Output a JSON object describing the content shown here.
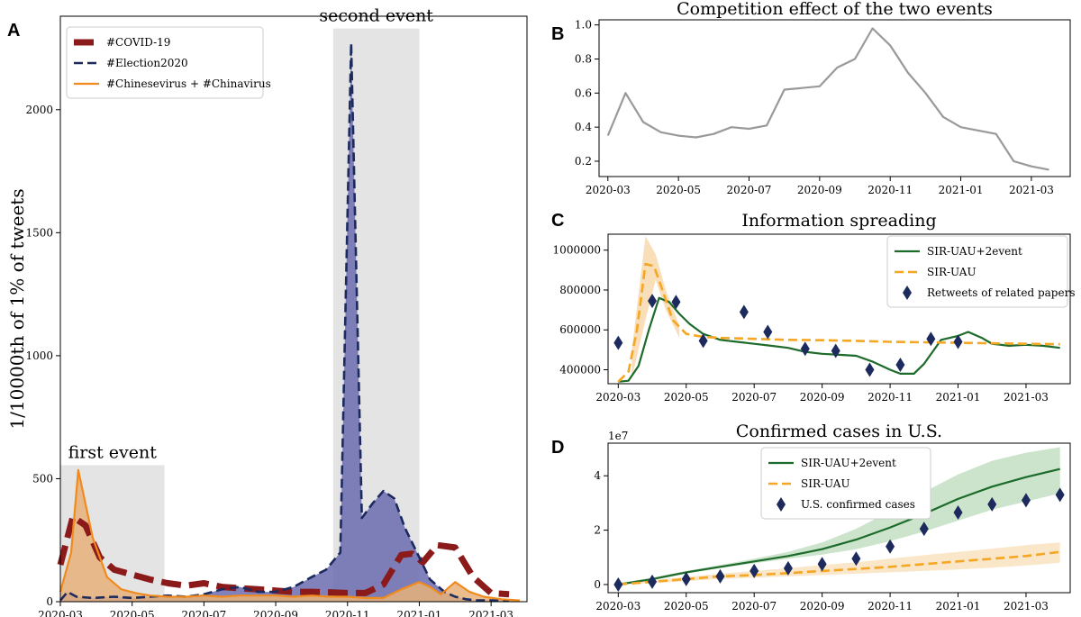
{
  "chart_data": [
    {
      "id": "A",
      "panel_letter": "A",
      "type": "area",
      "title": "",
      "xlabel": "",
      "ylabel": "1/10000th of 1% of tweets",
      "xlim": [
        0,
        13.0
      ],
      "ylim": [
        0,
        2380
      ],
      "yticks": [
        0,
        500,
        1000,
        1500,
        2000
      ],
      "ytick_labels": [
        "0",
        "500",
        "1000",
        "1500",
        "2000"
      ],
      "xticks": [
        0,
        2,
        4,
        6,
        8,
        10,
        12
      ],
      "xtick_labels": [
        "2020-03",
        "2020-05",
        "2020-07",
        "2020-09",
        "2020-11",
        "2021-01",
        "2021-03"
      ],
      "grid": false,
      "legend_position": "top-left",
      "annotations": [
        {
          "label": "first event",
          "x_start": 0.0,
          "x_end": 2.9,
          "y_top": 555
        },
        {
          "label": "second event",
          "x_start": 7.6,
          "x_end": 10.0,
          "y_top": 2330
        }
      ],
      "series": [
        {
          "name": "#COVID-19",
          "color": "#8b1a1a",
          "style": "dashed-thick",
          "fill": false,
          "x": [
            0,
            0.35,
            0.7,
            1.1,
            1.5,
            2.0,
            2.5,
            3.0,
            3.5,
            4.0,
            4.5,
            5.0,
            5.5,
            6.0,
            6.5,
            7.0,
            7.5,
            8.0,
            8.5,
            9.0,
            9.5,
            9.8,
            10.1,
            10.5,
            11.0,
            11.5,
            12.0,
            12.5
          ],
          "values": [
            150,
            345,
            310,
            180,
            130,
            110,
            90,
            75,
            65,
            75,
            60,
            55,
            50,
            45,
            40,
            40,
            38,
            35,
            35,
            70,
            190,
            195,
            160,
            230,
            220,
            100,
            35,
            30
          ]
        },
        {
          "name": "#Election2020",
          "color": "#1c2a5e",
          "fill_color": "#6b6bb0",
          "style": "dashed",
          "fill": true,
          "x": [
            0,
            0.2,
            0.45,
            0.9,
            1.5,
            2.0,
            2.5,
            3.0,
            3.5,
            4.0,
            4.5,
            5.0,
            5.5,
            6.0,
            6.5,
            7.0,
            7.4,
            7.8,
            8.1,
            8.4,
            8.7,
            9.0,
            9.3,
            9.6,
            10.0,
            10.3,
            10.7,
            11.0,
            11.3,
            11.6,
            12.0,
            12.5
          ],
          "values": [
            5,
            40,
            20,
            15,
            20,
            15,
            20,
            25,
            20,
            30,
            50,
            60,
            40,
            40,
            60,
            100,
            130,
            200,
            2270,
            340,
            400,
            450,
            420,
            300,
            180,
            90,
            40,
            20,
            10,
            5,
            5,
            5
          ]
        },
        {
          "name": "#Chinesevirus + #Chinavirus",
          "color": "#f08a1c",
          "fill_color": "#e7b27a",
          "style": "solid",
          "fill": true,
          "x": [
            0,
            0.3,
            0.5,
            0.9,
            1.3,
            1.7,
            2.1,
            2.5,
            3.0,
            3.5,
            4.0,
            4.5,
            5.0,
            5.5,
            6.0,
            6.5,
            7.0,
            7.5,
            8.0,
            8.5,
            9.0,
            9.5,
            10.0,
            10.3,
            10.6,
            11.0,
            11.4,
            11.8,
            12.3,
            12.8
          ],
          "values": [
            40,
            200,
            535,
            260,
            100,
            50,
            35,
            25,
            20,
            20,
            25,
            20,
            25,
            25,
            25,
            20,
            25,
            20,
            20,
            15,
            15,
            50,
            80,
            60,
            30,
            80,
            40,
            20,
            10,
            5
          ]
        }
      ]
    },
    {
      "id": "B",
      "panel_letter": "B",
      "type": "line",
      "title": "Competition effect of the two events",
      "xlabel": "",
      "ylabel": "",
      "xlim": [
        -0.25,
        13.1
      ],
      "ylim": [
        0.11,
        1.03
      ],
      "yticks": [
        0.2,
        0.4,
        0.6,
        0.8,
        1.0
      ],
      "ytick_labels": [
        "0.2",
        "0.4",
        "0.6",
        "0.8",
        "1.0"
      ],
      "xticks": [
        0,
        2,
        4,
        6,
        8,
        10,
        12
      ],
      "xtick_labels": [
        "2020-03",
        "2020-05",
        "2020-07",
        "2020-09",
        "2020-11",
        "2021-01",
        "2021-03"
      ],
      "grid": false,
      "series": [
        {
          "name": "competition",
          "color": "#999999",
          "x": [
            0,
            0.5,
            1.0,
            1.5,
            2.0,
            2.5,
            3.0,
            3.5,
            4.0,
            4.5,
            5.0,
            5.5,
            6.0,
            6.5,
            7.0,
            7.5,
            8.0,
            8.5,
            9.0,
            9.5,
            10.0,
            10.5,
            11.0,
            11.5,
            12.0,
            12.5
          ],
          "values": [
            0.35,
            0.6,
            0.43,
            0.37,
            0.35,
            0.34,
            0.36,
            0.4,
            0.39,
            0.41,
            0.62,
            0.63,
            0.64,
            0.75,
            0.8,
            0.98,
            0.88,
            0.72,
            0.6,
            0.46,
            0.4,
            0.38,
            0.36,
            0.2,
            0.17,
            0.15
          ]
        }
      ]
    },
    {
      "id": "C",
      "panel_letter": "C",
      "type": "line",
      "title": "Information spreading",
      "xlabel": "",
      "ylabel": "",
      "xlim": [
        -0.3,
        13.3
      ],
      "ylim": [
        330000,
        1080000
      ],
      "yticks": [
        400000,
        600000,
        800000,
        1000000
      ],
      "ytick_labels": [
        "400000",
        "600000",
        "800000",
        "1000000"
      ],
      "xticks": [
        0,
        2,
        4,
        6,
        8,
        10,
        12
      ],
      "xtick_labels": [
        "2020-03",
        "2020-05",
        "2020-07",
        "2020-09",
        "2020-11",
        "2021-01",
        "2021-03"
      ],
      "grid": false,
      "legend_position": "top-right",
      "series": [
        {
          "name": "SIR-UAU+2event",
          "color": "#1d6b2a",
          "style": "solid",
          "x": [
            0,
            0.3,
            0.6,
            0.9,
            1.2,
            1.5,
            1.8,
            2.1,
            2.5,
            3.0,
            3.5,
            4.0,
            4.5,
            5.0,
            5.5,
            6.0,
            6.5,
            7.0,
            7.5,
            8.0,
            8.3,
            8.7,
            9.0,
            9.5,
            10.0,
            10.3,
            10.7,
            11.0,
            11.5,
            12.0,
            12.5,
            13.0
          ],
          "values": [
            340000,
            345000,
            420000,
            600000,
            760000,
            740000,
            680000,
            630000,
            580000,
            550000,
            540000,
            530000,
            520000,
            510000,
            490000,
            480000,
            475000,
            470000,
            440000,
            400000,
            380000,
            380000,
            430000,
            550000,
            570000,
            590000,
            560000,
            530000,
            520000,
            525000,
            520000,
            510000
          ]
        },
        {
          "name": "SIR-UAU",
          "color": "#f5a623",
          "style": "dashed",
          "x": [
            0,
            0.3,
            0.55,
            0.8,
            1.05,
            1.3,
            1.6,
            2.0,
            2.5,
            3.0,
            4.0,
            5.0,
            6.0,
            7.0,
            8.0,
            9.0,
            10.0,
            11.0,
            12.0,
            13.0
          ],
          "values": [
            340000,
            390000,
            600000,
            930000,
            920000,
            800000,
            650000,
            580000,
            565000,
            560000,
            555000,
            550000,
            548000,
            545000,
            540000,
            538000,
            535000,
            533000,
            530000,
            528000
          ]
        },
        {
          "name": "Retweets of related papers",
          "color": "#1c2a5e",
          "style": "diamond",
          "x": [
            0,
            1.0,
            1.7,
            2.5,
            3.7,
            4.4,
            5.5,
            6.4,
            7.4,
            8.3,
            9.2,
            10.0
          ],
          "values": [
            535000,
            745000,
            740000,
            545000,
            690000,
            590000,
            505000,
            495000,
            400000,
            425000,
            555000,
            540000
          ]
        }
      ],
      "band": {
        "name": "SIR-UAU band",
        "color": "#f5c98a",
        "x": [
          0.4,
          0.8,
          1.1,
          1.4,
          1.8
        ],
        "upper": [
          500000,
          1070000,
          980000,
          800000,
          620000
        ],
        "lower": [
          360000,
          650000,
          850000,
          700000,
          560000
        ]
      }
    },
    {
      "id": "D",
      "panel_letter": "D",
      "type": "line",
      "title": "Confirmed cases in U.S.",
      "xlabel": "",
      "ylabel": "",
      "y_offset_label": "1e7",
      "xlim": [
        -0.3,
        13.3
      ],
      "ylim": [
        -0.3,
        5.2
      ],
      "yticks": [
        0,
        2,
        4
      ],
      "ytick_labels": [
        "0",
        "2",
        "4"
      ],
      "xticks": [
        0,
        2,
        4,
        6,
        8,
        10,
        12
      ],
      "xtick_labels": [
        "2020-03",
        "2020-05",
        "2020-07",
        "2020-09",
        "2020-11",
        "2021-01",
        "2021-03"
      ],
      "grid": false,
      "legend_position": "top-center",
      "series": [
        {
          "name": "SIR-UAU+2event",
          "color": "#1d6b2a",
          "style": "solid",
          "x": [
            0,
            1,
            2,
            3,
            4,
            5,
            6,
            7,
            8,
            9,
            10,
            11,
            12,
            13
          ],
          "values": [
            0.0,
            0.2,
            0.45,
            0.65,
            0.85,
            1.05,
            1.3,
            1.65,
            2.1,
            2.6,
            3.15,
            3.6,
            3.95,
            4.25
          ]
        },
        {
          "name": "SIR-UAU",
          "color": "#f5a623",
          "style": "dashed",
          "x": [
            0,
            1,
            2,
            3,
            4,
            5,
            6,
            7,
            8,
            9,
            10,
            11,
            12,
            13
          ],
          "values": [
            0.0,
            0.1,
            0.2,
            0.3,
            0.35,
            0.42,
            0.5,
            0.57,
            0.65,
            0.75,
            0.85,
            0.95,
            1.05,
            1.2
          ]
        },
        {
          "name": "U.S. confirmed cases",
          "color": "#1c2a5e",
          "style": "diamond",
          "x": [
            0,
            1,
            2,
            3,
            4,
            5,
            6,
            7,
            8,
            9,
            10,
            11,
            12,
            13
          ],
          "values": [
            0.0,
            0.1,
            0.2,
            0.3,
            0.5,
            0.6,
            0.75,
            0.95,
            1.4,
            2.05,
            2.65,
            2.95,
            3.1,
            3.3
          ]
        }
      ],
      "bands": [
        {
          "name": "SIR-UAU+2event band",
          "color": "#a9d2a9",
          "x": [
            0,
            1,
            2,
            3,
            4,
            5,
            6,
            7,
            8,
            9,
            10,
            11,
            12,
            13
          ],
          "upper": [
            0.05,
            0.25,
            0.5,
            0.72,
            0.95,
            1.2,
            1.55,
            2.05,
            2.7,
            3.4,
            4.05,
            4.55,
            4.85,
            5.05
          ],
          "lower": [
            0.0,
            0.15,
            0.4,
            0.6,
            0.78,
            0.95,
            1.1,
            1.3,
            1.6,
            1.95,
            2.35,
            2.75,
            3.05,
            3.35
          ]
        },
        {
          "name": "SIR-UAU band",
          "color": "#f6d6a4",
          "x": [
            0,
            1,
            2,
            3,
            4,
            5,
            6,
            7,
            8,
            9,
            10,
            11,
            12,
            13
          ],
          "upper": [
            0.05,
            0.15,
            0.28,
            0.4,
            0.5,
            0.6,
            0.72,
            0.82,
            0.95,
            1.08,
            1.2,
            1.32,
            1.45,
            1.55
          ],
          "lower": [
            0.0,
            0.05,
            0.12,
            0.2,
            0.25,
            0.3,
            0.35,
            0.4,
            0.45,
            0.5,
            0.55,
            0.62,
            0.7,
            0.8
          ]
        }
      ]
    }
  ]
}
